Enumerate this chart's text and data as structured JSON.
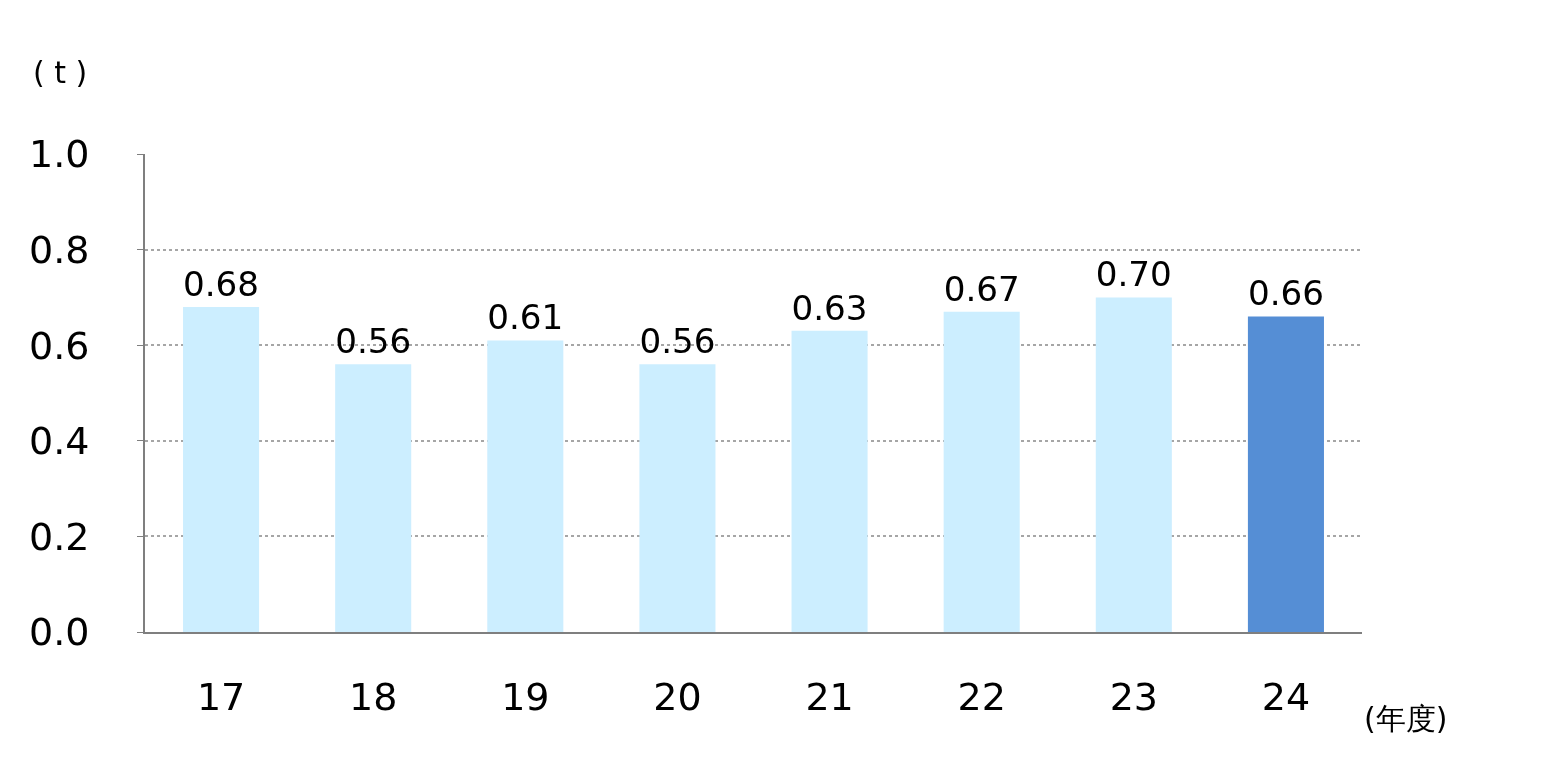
{
  "chart_data": {
    "type": "bar",
    "ylabel": "( t )",
    "xlabel": "(年度)",
    "categories": [
      "17",
      "18",
      "19",
      "20",
      "21",
      "22",
      "23",
      "24"
    ],
    "values": [
      0.68,
      0.56,
      0.61,
      0.56,
      0.63,
      0.67,
      0.7,
      0.66
    ],
    "value_labels": [
      "0.68",
      "0.56",
      "0.61",
      "0.56",
      "0.63",
      "0.67",
      "0.70",
      "0.66"
    ],
    "colors": [
      "#cceeff",
      "#cceeff",
      "#cceeff",
      "#cceeff",
      "#cceeff",
      "#cceeff",
      "#cceeff",
      "#558ed5"
    ],
    "ylim": [
      0,
      1.0
    ],
    "yticks": [
      {
        "value": 0,
        "label": "0.0"
      },
      {
        "value": 0.2,
        "label": "0.2"
      },
      {
        "value": 0.4,
        "label": "0.4"
      },
      {
        "value": 0.6,
        "label": "0.6"
      },
      {
        "value": 0.8,
        "label": "0.8"
      },
      {
        "value": 1.0,
        "label": "1.0"
      }
    ],
    "grid": "y",
    "legend": false
  }
}
